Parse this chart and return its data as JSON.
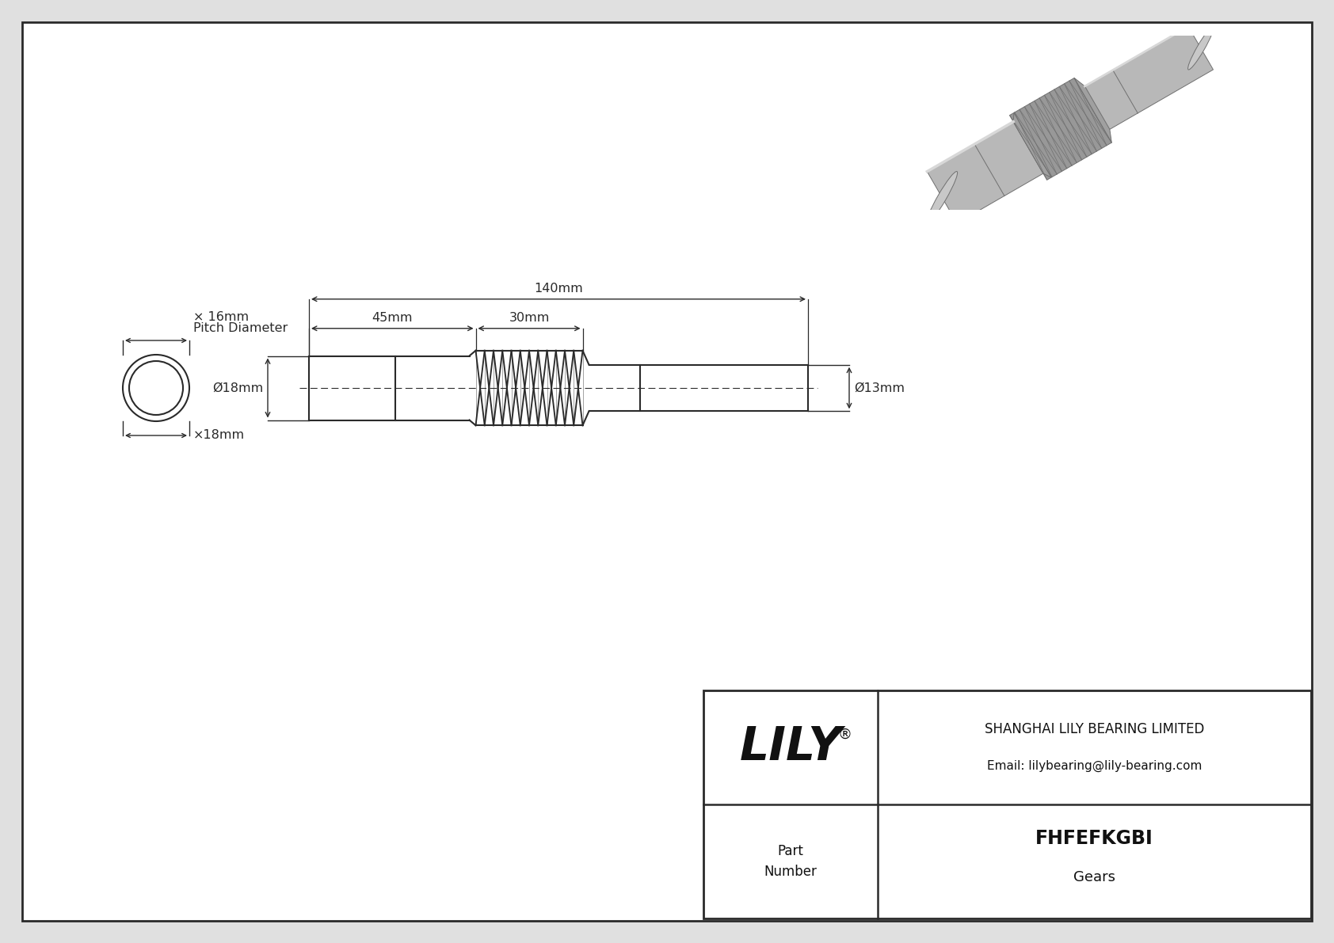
{
  "bg_color": "#e0e0e0",
  "line_color": "#2a2a2a",
  "part_number": "FHFEFKGBI",
  "part_type": "Gears",
  "company": "SHANGHAI LILY BEARING LIMITED",
  "email": "Email: lilybearing@lily-bearing.com",
  "logo_text": "LILY",
  "dim_total": "140mm",
  "dim_left": "45mm",
  "dim_thread": "30mm",
  "dim_od_18": "Ø18mm",
  "dim_od_13": "Ø13mm",
  "dim_pitch_d": "× 16mm",
  "dim_bore": "×18mm",
  "pitch_label": "Pitch Diameter"
}
